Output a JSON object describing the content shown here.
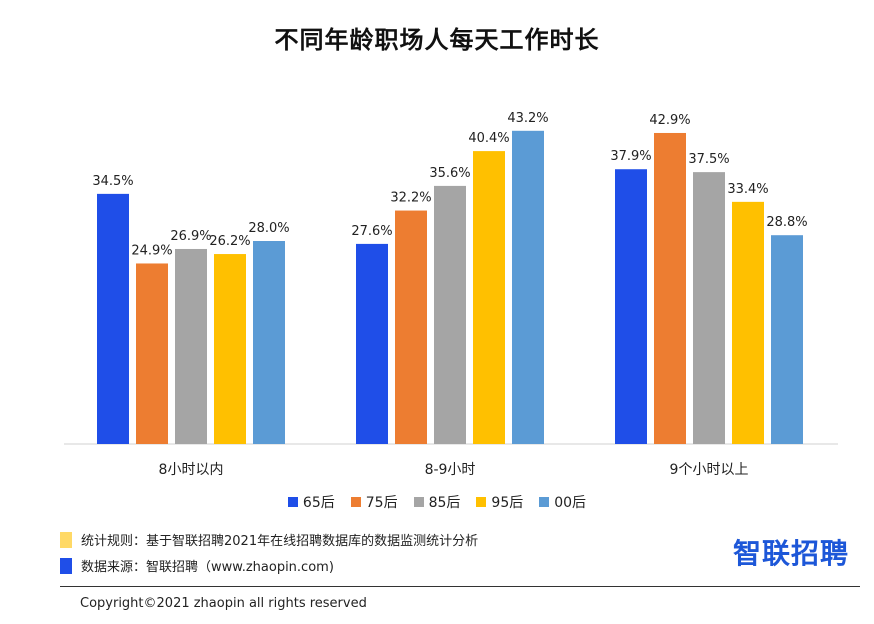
{
  "notes": {
    "rule": "统计规则：基于智联招聘2021年在线招聘数据库的数据监测统计分析",
    "source": "数据来源：智联招聘（www.zhaopin.com)",
    "rule_color": "#ffd966",
    "source_color": "#1f4ee8"
  },
  "brand": {
    "logo_text": "智联招聘",
    "color": "#1d57d8"
  },
  "copyright": "Copyright©2021 zhaopin  all rights reserved",
  "chart_data": {
    "type": "bar",
    "title": "不同年龄职场人每天工作时长",
    "xlabel": "",
    "ylabel": "",
    "ylim": [
      0,
      50
    ],
    "grid": false,
    "legend_position": "bottom",
    "unit": "%",
    "categories": [
      "8小时以内",
      "8-9小时",
      "9个小时以上"
    ],
    "series": [
      {
        "name": "65后",
        "color": "#1f4ee8",
        "values": [
          34.5,
          27.6,
          37.9
        ],
        "labels": [
          "34.5%",
          "27.6%",
          "37.9%"
        ]
      },
      {
        "name": "75后",
        "color": "#ed7d31",
        "values": [
          24.9,
          32.2,
          42.9
        ],
        "labels": [
          "24.9%",
          "32.2%",
          "42.9%"
        ]
      },
      {
        "name": "85后",
        "color": "#a5a5a5",
        "values": [
          26.9,
          35.6,
          37.5
        ],
        "labels": [
          "26.9%",
          "35.6%",
          "37.5%"
        ]
      },
      {
        "name": "95后",
        "color": "#ffc000",
        "values": [
          26.2,
          40.4,
          33.4
        ],
        "labels": [
          "26.2%",
          "40.4%",
          "33.4%"
        ]
      },
      {
        "name": "00后",
        "color": "#5b9bd5",
        "values": [
          28.0,
          43.2,
          28.8
        ],
        "labels": [
          "28.0%",
          "43.2%",
          "28.8%"
        ]
      }
    ]
  }
}
